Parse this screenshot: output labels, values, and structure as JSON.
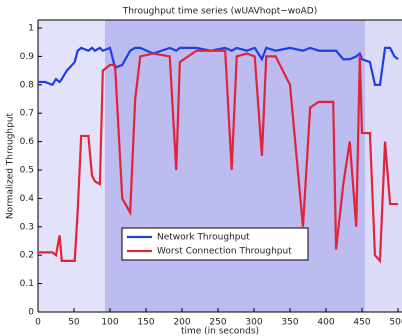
{
  "chart_data": {
    "type": "line",
    "title": "Throughput time series (wUAVhopt−woAD)",
    "x_label": "time (in seconds)",
    "y_label": "Normalized Throughput",
    "x": [
      0,
      10,
      20,
      25,
      30,
      33,
      40,
      51,
      55,
      60,
      70,
      75,
      79,
      86,
      90,
      100,
      107,
      117,
      128,
      135,
      142,
      160,
      183,
      192,
      197,
      220,
      240,
      260,
      269,
      276,
      290,
      301,
      311,
      317,
      330,
      350,
      368,
      378,
      390,
      410,
      414,
      424,
      433,
      442,
      447,
      450,
      461,
      468,
      475,
      482,
      489,
      495,
      500
    ],
    "series": [
      {
        "name": "Network Throughput",
        "color": "#1f3fe6",
        "values": [
          0.81,
          0.81,
          0.8,
          0.82,
          0.81,
          0.82,
          0.85,
          0.88,
          0.92,
          0.93,
          0.92,
          0.93,
          0.92,
          0.93,
          0.92,
          0.93,
          0.86,
          0.87,
          0.92,
          0.93,
          0.93,
          0.91,
          0.93,
          0.92,
          0.93,
          0.93,
          0.92,
          0.93,
          0.92,
          0.93,
          0.92,
          0.93,
          0.89,
          0.93,
          0.92,
          0.93,
          0.92,
          0.93,
          0.92,
          0.92,
          0.92,
          0.89,
          0.89,
          0.9,
          0.91,
          0.89,
          0.88,
          0.8,
          0.8,
          0.93,
          0.93,
          0.9,
          0.89
        ]
      },
      {
        "name": "Worst Connection Throughput",
        "color": "#e0243a",
        "values": [
          0.21,
          0.21,
          0.21,
          0.2,
          0.27,
          0.18,
          0.18,
          0.18,
          0.35,
          0.62,
          0.62,
          0.48,
          0.46,
          0.45,
          0.85,
          0.87,
          0.87,
          0.4,
          0.35,
          0.75,
          0.9,
          0.91,
          0.9,
          0.5,
          0.88,
          0.92,
          0.92,
          0.92,
          0.5,
          0.9,
          0.91,
          0.9,
          0.55,
          0.9,
          0.9,
          0.8,
          0.3,
          0.72,
          0.74,
          0.74,
          0.22,
          0.45,
          0.6,
          0.3,
          0.9,
          0.63,
          0.63,
          0.2,
          0.18,
          0.6,
          0.38,
          0.38,
          0.38
        ]
      }
    ],
    "xlim": [
      0,
      500
    ],
    "xticks": [
      0,
      50,
      100,
      150,
      200,
      250,
      300,
      350,
      400,
      450,
      500
    ],
    "ylim": [
      0,
      1
    ],
    "yticks": [
      0,
      0.1,
      0.2,
      0.3,
      0.4,
      0.5,
      0.6,
      0.7,
      0.8,
      0.9,
      1
    ],
    "grid": false
  }
}
